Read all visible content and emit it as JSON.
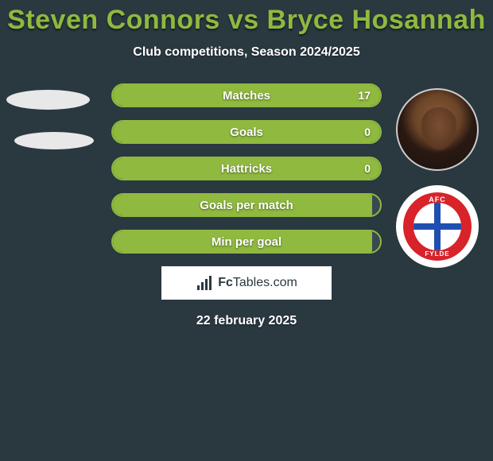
{
  "title": "Steven Connors vs Bryce Hosannah",
  "subtitle": "Club competitions, Season 2024/2025",
  "date": "22 february 2025",
  "logo": {
    "text_bold": "Fc",
    "text_rest": "Tables.com"
  },
  "club_badge": {
    "top": "AFC",
    "bottom": "FYLDE"
  },
  "colors": {
    "accent": "#8fb93f",
    "background": "#2a3840",
    "bar_bg": "#394851",
    "white": "#ffffff"
  },
  "bars": [
    {
      "label": "Matches",
      "value": "17",
      "fill_pct": 100
    },
    {
      "label": "Goals",
      "value": "0",
      "fill_pct": 100
    },
    {
      "label": "Hattricks",
      "value": "0",
      "fill_pct": 100
    },
    {
      "label": "Goals per match",
      "value": "",
      "fill_pct": 97
    },
    {
      "label": "Min per goal",
      "value": "",
      "fill_pct": 97
    }
  ]
}
